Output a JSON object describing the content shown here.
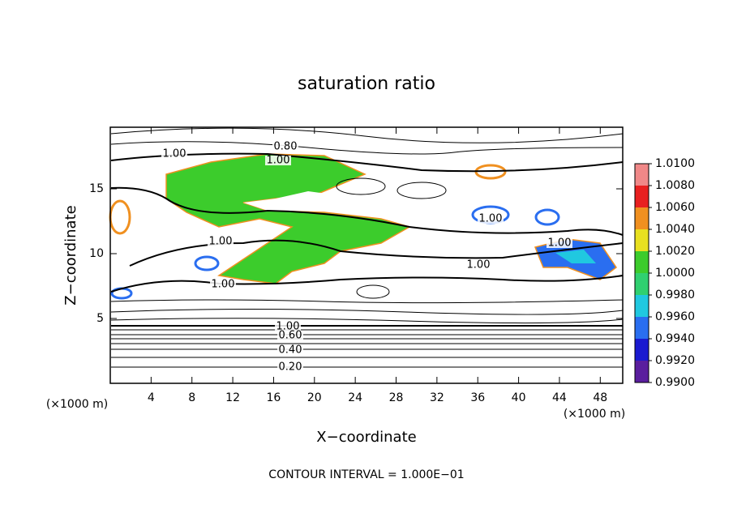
{
  "chart_data": {
    "type": "contour",
    "title": "saturation ratio",
    "x_label": "X−coordinate",
    "y_label": "Z−coordinate",
    "unit_labels": [
      "(×1000 m)",
      "(×1000 m)"
    ],
    "footer": "CONTOUR INTERVAL = 1.000E−01",
    "xlim": [
      0,
      50.2
    ],
    "ylim": [
      0,
      19.75
    ],
    "xticks": [
      4,
      8,
      12,
      16,
      20,
      24,
      28,
      32,
      36,
      40,
      44,
      48
    ],
    "yticks": [
      5,
      10,
      15
    ],
    "contour_labels": [
      "1.00",
      "0.80",
      "1.00",
      "1.00",
      "1.00",
      "1.00",
      "1.00",
      "1.00",
      "1.00",
      "0.60",
      "0.40",
      "0.20"
    ],
    "colorbar_lim": [
      0.99,
      1.01
    ],
    "colorbar_ticks": [
      {
        "value": 0.99,
        "label": "0.9900"
      },
      {
        "value": 0.992,
        "label": "0.9920"
      },
      {
        "value": 0.994,
        "label": "0.9940"
      },
      {
        "value": 0.996,
        "label": "0.9960"
      },
      {
        "value": 0.998,
        "label": "0.9980"
      },
      {
        "value": 1.0,
        "label": "1.0000"
      },
      {
        "value": 1.002,
        "label": "1.0020"
      },
      {
        "value": 1.004,
        "label": "1.0040"
      },
      {
        "value": 1.006,
        "label": "1.0060"
      },
      {
        "value": 1.008,
        "label": "1.0080"
      },
      {
        "value": 1.01,
        "label": "1.0100"
      }
    ],
    "colorbar_colors": [
      "#5a1e9e",
      "#1a1ad0",
      "#2a6ef0",
      "#20c8e0",
      "#30d070",
      "#3ccc2c",
      "#e8e020",
      "#f09020",
      "#e82020",
      "#f08888"
    ]
  }
}
